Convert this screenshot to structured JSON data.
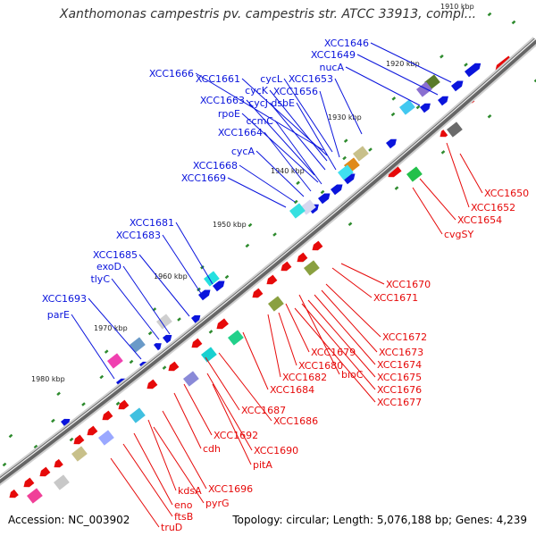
{
  "title": "Xanthomonas campestris pv. campestris str. ATCC 33913, compl...",
  "footer": {
    "accession": "Accession: NC_003902",
    "summary": "Topology: circular; Length: 5,076,188 bp; Genes: 4,239"
  },
  "colors": {
    "forward": "#0a14dc",
    "reverse": "#e60a0a",
    "backbone": "#666666",
    "tick": "#2e8b2e"
  },
  "kbp_marks": [
    "1910 kbp",
    "1920 kbp",
    "1930 kbp",
    "1940 kbp",
    "1950 kbp",
    "1960 kbp",
    "1970 kbp",
    "1980 kbp"
  ],
  "forward_genes": [
    "XCC1646",
    "XCC1649",
    "nucA",
    "XCC1666",
    "XCC1661",
    "cycL",
    "cycK",
    "XCC1653",
    "XCC1656",
    "cycJ",
    "dsbE",
    "XCC1663",
    "rpoE",
    "ccmC",
    "XCC1664",
    "cycA",
    "XCC1668",
    "XCC1669",
    "XCC1681",
    "XCC1683",
    "XCC1685",
    "exoD",
    "tlyC",
    "XCC1693",
    "parE"
  ],
  "reverse_genes": [
    "XCC1650",
    "XCC1652",
    "XCC1654",
    "cvgSY",
    "XCC1670",
    "XCC1671",
    "XCC1672",
    "XCC1673",
    "XCC1674",
    "XCC1675",
    "XCC1676",
    "XCC1677",
    "XCC1679",
    "XCC1680",
    "bioC",
    "XCC1682",
    "XCC1684",
    "XCC1687",
    "XCC1686",
    "XCC1692",
    "XCC1690",
    "cdh",
    "pitA",
    "XCC1696",
    "kdsA",
    "pyrG",
    "eno",
    "ftsB",
    "truD"
  ]
}
